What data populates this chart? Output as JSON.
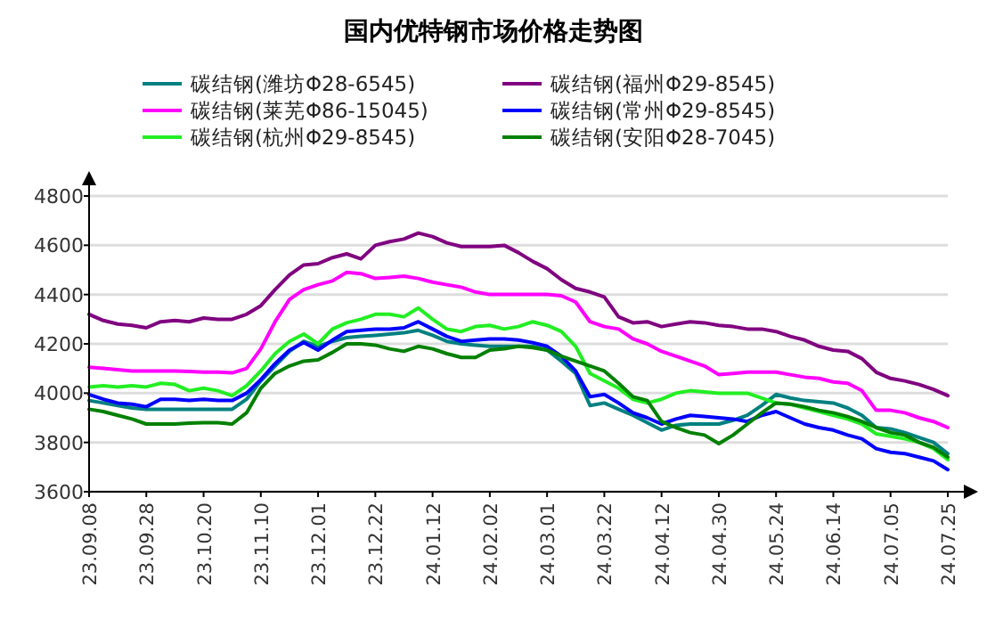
{
  "chart_data": {
    "type": "line",
    "title": "国内优特钢市场价格走势图",
    "categories": [
      "23.09.08",
      null,
      null,
      null,
      "23.09.28",
      null,
      null,
      null,
      "23.10.20",
      null,
      null,
      null,
      "23.11.10",
      null,
      null,
      null,
      "23.12.01",
      null,
      null,
      null,
      "23.12.22",
      null,
      null,
      null,
      "24.01.12",
      null,
      null,
      null,
      "24.02.02",
      null,
      null,
      null,
      "24.03.01",
      null,
      null,
      null,
      "24.03.22",
      null,
      null,
      null,
      "24.04.12",
      null,
      null,
      null,
      "24.04.30",
      null,
      null,
      null,
      "24.05.24",
      null,
      null,
      null,
      "24.06.14",
      null,
      null,
      null,
      "24.07.05",
      null,
      null,
      null,
      "24.07.25"
    ],
    "series": [
      {
        "name": "碳结钢(潍坊Φ28-6545)",
        "color": "#008080",
        "values": [
          3970,
          3960,
          3950,
          3940,
          3935,
          3935,
          3935,
          3935,
          3935,
          3935,
          3935,
          3975,
          4050,
          4110,
          4170,
          4210,
          4190,
          4210,
          4225,
          4230,
          4235,
          4240,
          4245,
          4255,
          4235,
          4210,
          4200,
          4195,
          4190,
          4190,
          4190,
          4190,
          4175,
          4130,
          4080,
          3950,
          3960,
          3935,
          3910,
          3880,
          3850,
          3870,
          3875,
          3875,
          3875,
          3890,
          3910,
          3950,
          3995,
          3980,
          3970,
          3965,
          3960,
          3940,
          3910,
          3860,
          3855,
          3840,
          3820,
          3800,
          3755
        ]
      },
      {
        "name": "碳结钢(福州Φ29-8545)",
        "color": "#800080",
        "values": [
          4320,
          4295,
          4280,
          4275,
          4265,
          4290,
          4295,
          4290,
          4305,
          4300,
          4300,
          4320,
          4355,
          4420,
          4480,
          4520,
          4525,
          4550,
          4565,
          4545,
          4600,
          4615,
          4625,
          4650,
          4635,
          4610,
          4595,
          4595,
          4595,
          4600,
          4570,
          4535,
          4505,
          4460,
          4425,
          4410,
          4390,
          4310,
          4285,
          4290,
          4270,
          4280,
          4290,
          4285,
          4275,
          4270,
          4260,
          4260,
          4250,
          4230,
          4215,
          4190,
          4175,
          4170,
          4140,
          4085,
          4060,
          4050,
          4035,
          4015,
          3990
        ]
      },
      {
        "name": "碳结钢(莱芜Φ86-15045)",
        "color": "#ff00ff",
        "values": [
          4105,
          4100,
          4095,
          4090,
          4090,
          4090,
          4090,
          4088,
          4085,
          4085,
          4082,
          4100,
          4180,
          4290,
          4380,
          4420,
          4440,
          4455,
          4490,
          4485,
          4465,
          4470,
          4475,
          4465,
          4450,
          4440,
          4430,
          4410,
          4400,
          4400,
          4400,
          4400,
          4400,
          4395,
          4370,
          4290,
          4270,
          4260,
          4220,
          4200,
          4170,
          4150,
          4130,
          4110,
          4075,
          4080,
          4085,
          4085,
          4085,
          4075,
          4065,
          4060,
          4045,
          4040,
          4010,
          3930,
          3930,
          3920,
          3900,
          3885,
          3860
        ]
      },
      {
        "name": "碳结钢(常州Φ29-8545)",
        "color": "#0000ff",
        "values": [
          3995,
          3975,
          3960,
          3955,
          3945,
          3975,
          3975,
          3970,
          3975,
          3970,
          3970,
          4000,
          4055,
          4120,
          4175,
          4205,
          4175,
          4215,
          4250,
          4255,
          4260,
          4260,
          4265,
          4290,
          4260,
          4230,
          4210,
          4215,
          4220,
          4220,
          4215,
          4205,
          4190,
          4150,
          4090,
          3985,
          3995,
          3960,
          3920,
          3900,
          3875,
          3895,
          3910,
          3905,
          3900,
          3895,
          3885,
          3910,
          3925,
          3900,
          3875,
          3860,
          3850,
          3830,
          3815,
          3775,
          3760,
          3755,
          3740,
          3725,
          3690
        ]
      },
      {
        "name": "碳结钢(杭州Φ29-8545)",
        "color": "#22ee22",
        "values": [
          4025,
          4030,
          4025,
          4030,
          4025,
          4040,
          4035,
          4010,
          4020,
          4010,
          3990,
          4030,
          4090,
          4160,
          4210,
          4240,
          4200,
          4260,
          4285,
          4300,
          4320,
          4320,
          4310,
          4345,
          4300,
          4260,
          4250,
          4270,
          4275,
          4260,
          4270,
          4290,
          4275,
          4250,
          4190,
          4080,
          4050,
          4020,
          3975,
          3960,
          3975,
          4000,
          4010,
          4005,
          4000,
          4000,
          4000,
          3980,
          3960,
          3955,
          3940,
          3925,
          3910,
          3895,
          3875,
          3835,
          3825,
          3815,
          3800,
          3775,
          3730
        ]
      },
      {
        "name": "碳结钢(安阳Φ28-7045)",
        "color": "#008000",
        "values": [
          3935,
          3925,
          3910,
          3895,
          3875,
          3875,
          3875,
          3878,
          3880,
          3880,
          3875,
          3920,
          4020,
          4080,
          4110,
          4130,
          4135,
          4165,
          4200,
          4200,
          4195,
          4180,
          4170,
          4190,
          4180,
          4160,
          4145,
          4145,
          4175,
          4180,
          4190,
          4185,
          4175,
          4150,
          4130,
          4110,
          4090,
          4040,
          3985,
          3970,
          3885,
          3860,
          3840,
          3830,
          3795,
          3830,
          3875,
          3920,
          3960,
          3955,
          3945,
          3930,
          3920,
          3905,
          3885,
          3860,
          3840,
          3830,
          3800,
          3780,
          3740
        ]
      }
    ],
    "ylim": [
      3600,
      4800
    ],
    "yticks": [
      3600,
      3800,
      4000,
      4200,
      4400,
      4600,
      4800
    ],
    "grid": "y",
    "legend": "top",
    "marker": "none",
    "line_style": "solid"
  }
}
